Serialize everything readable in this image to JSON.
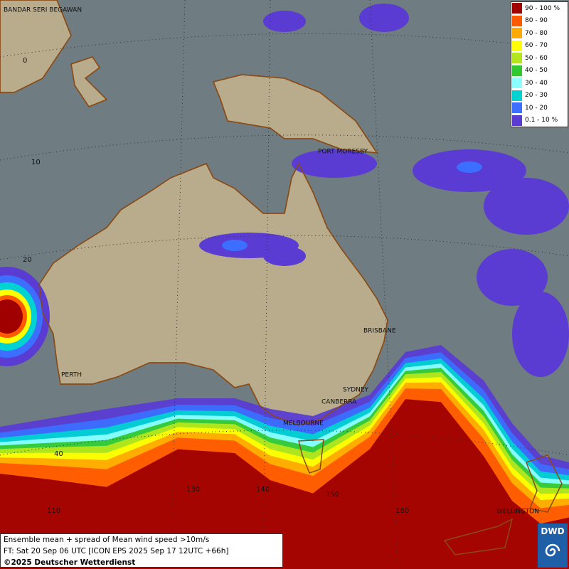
{
  "map": {
    "places": [
      "BANDAR SERI BEGAWAN",
      "PORT MORESBY",
      "BRISBANE",
      "SYDNEY",
      "CANBERRA",
      "MELBOURNE",
      "PERTH",
      "WELLINGTON"
    ],
    "grid_labels": [
      "0",
      "10",
      "20",
      "40",
      "110",
      "130",
      "140",
      "150",
      "160"
    ]
  },
  "legend": {
    "items": [
      {
        "label": "90 - 100 %",
        "color": "#a00000"
      },
      {
        "label": "80 - 90",
        "color": "#ff5a00"
      },
      {
        "label": "70 - 80",
        "color": "#ffaa00"
      },
      {
        "label": "60 - 70",
        "color": "#ffff00"
      },
      {
        "label": "50 - 60",
        "color": "#b4e61e"
      },
      {
        "label": "40 - 50",
        "color": "#32c832"
      },
      {
        "label": "30 - 40",
        "color": "#8cffff"
      },
      {
        "label": "20 - 30",
        "color": "#00d2d2"
      },
      {
        "label": "10 - 20",
        "color": "#3c6eff"
      },
      {
        "label": "0.1 - 10 %",
        "color": "#5a3cd2"
      }
    ]
  },
  "footer": {
    "line1": "Ensemble mean + spread of Mean wind speed >10m/s",
    "line2": "FT: Sat 20 Sep 06 UTC [ICON EPS 2025 Sep 17 12UTC +66h]",
    "line3": "©2025 Deutscher Wetterdienst"
  },
  "logo": {
    "text": "DWD"
  }
}
